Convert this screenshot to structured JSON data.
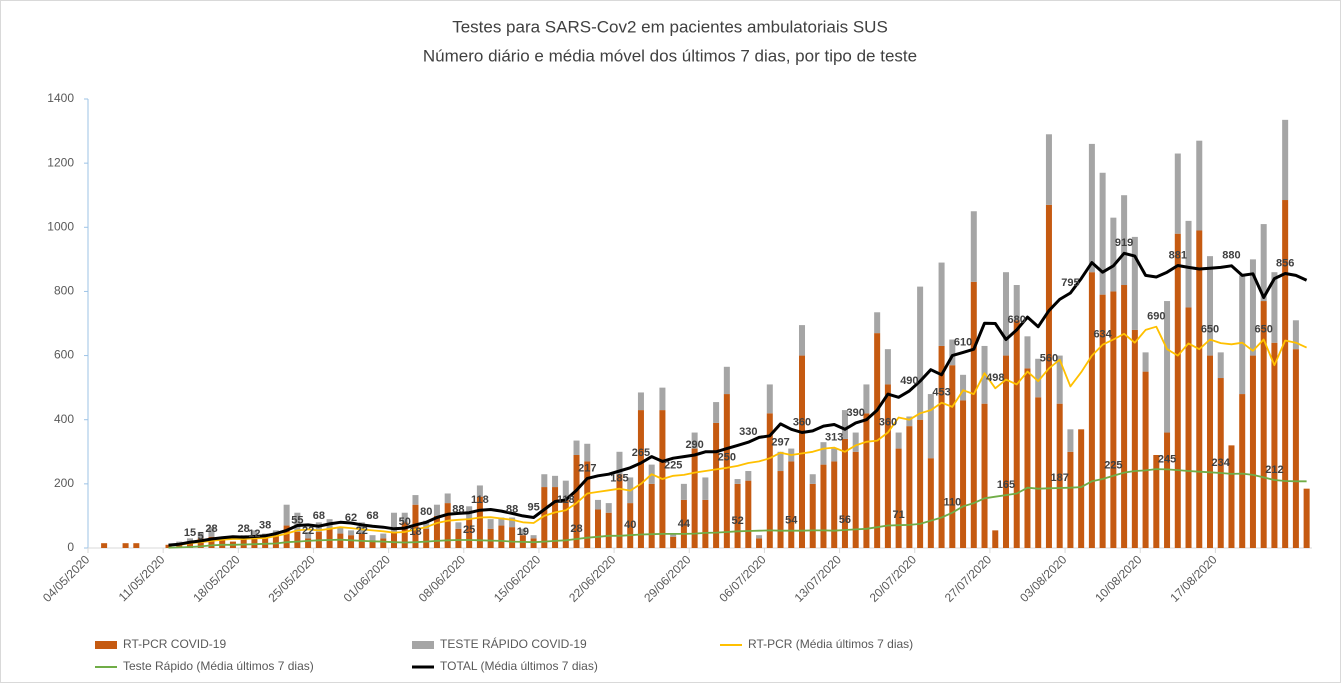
{
  "chart_data": {
    "type": "combo",
    "title": "Testes para SARS-Cov2 em pacientes ambulatoriais SUS",
    "subtitle": "Número diário e média móvel dos últimos 7 dias, por tipo de teste",
    "stacked": true,
    "grid": false,
    "legend": "bottom",
    "ylim": [
      0,
      1400
    ],
    "yticks": [
      0,
      200,
      400,
      600,
      800,
      1000,
      1200,
      1400
    ],
    "categories": [
      "04/05/2020",
      null,
      null,
      null,
      null,
      null,
      null,
      "11/05/2020",
      null,
      null,
      null,
      null,
      null,
      null,
      "18/05/2020",
      null,
      null,
      null,
      null,
      null,
      null,
      "25/05/2020",
      null,
      null,
      null,
      null,
      null,
      null,
      "01/06/2020",
      null,
      null,
      null,
      null,
      null,
      null,
      "08/06/2020",
      null,
      null,
      null,
      null,
      null,
      null,
      "15/06/2020",
      null,
      null,
      null,
      null,
      null,
      null,
      "22/06/2020",
      null,
      null,
      null,
      null,
      null,
      null,
      "29/06/2020",
      null,
      null,
      null,
      null,
      null,
      null,
      "06/07/2020",
      null,
      null,
      null,
      null,
      null,
      null,
      "13/07/2020",
      null,
      null,
      null,
      null,
      null,
      null,
      "20/07/2020",
      null,
      null,
      null,
      null,
      null,
      null,
      "27/07/2020",
      null,
      null,
      null,
      null,
      null,
      null,
      "03/08/2020",
      null,
      null,
      null,
      null,
      null,
      null,
      "10/08/2020",
      null,
      null,
      null,
      null,
      null,
      null,
      "17/08/2020",
      null,
      null,
      null,
      null,
      null,
      null,
      null,
      null
    ],
    "series": [
      {
        "name": "RT-PCR COVID-19",
        "type": "bar",
        "color": "#c55a11",
        "values": [
          0,
          15,
          0,
          15,
          15,
          0,
          0,
          10,
          15,
          20,
          30,
          35,
          30,
          20,
          30,
          40,
          35,
          45,
          70,
          50,
          30,
          50,
          60,
          45,
          40,
          45,
          20,
          30,
          50,
          80,
          135,
          60,
          100,
          140,
          60,
          90,
          160,
          60,
          70,
          65,
          40,
          30,
          190,
          190,
          150,
          290,
          270,
          120,
          110,
          230,
          140,
          430,
          200,
          430,
          35,
          150,
          310,
          150,
          390,
          480,
          200,
          210,
          30,
          420,
          240,
          270,
          600,
          200,
          260,
          270,
          340,
          300,
          420,
          670,
          510,
          310,
          380,
          400,
          280,
          630,
          570,
          460,
          830,
          450,
          55,
          600,
          710,
          560,
          470,
          1070,
          450,
          300,
          370,
          860,
          790,
          800,
          820,
          680,
          550,
          290,
          360,
          980,
          750,
          990,
          600,
          530,
          320,
          480,
          600,
          770,
          640,
          1085,
          620,
          185
        ]
      },
      {
        "name": "TESTE RÁPIDO COVID-19",
        "type": "bar",
        "color": "#a5a5a5",
        "values": [
          0,
          0,
          0,
          0,
          0,
          0,
          0,
          0,
          5,
          10,
          20,
          30,
          5,
          0,
          10,
          15,
          10,
          10,
          65,
          60,
          20,
          30,
          30,
          20,
          15,
          35,
          20,
          15,
          60,
          30,
          30,
          25,
          35,
          30,
          20,
          40,
          35,
          30,
          25,
          30,
          20,
          10,
          40,
          35,
          60,
          45,
          55,
          30,
          30,
          70,
          80,
          55,
          60,
          70,
          10,
          50,
          50,
          70,
          65,
          85,
          15,
          30,
          10,
          90,
          60,
          40,
          95,
          30,
          70,
          40,
          90,
          60,
          90,
          65,
          110,
          50,
          30,
          415,
          200,
          260,
          80,
          80,
          220,
          180,
          0,
          260,
          110,
          100,
          120,
          220,
          150,
          70,
          0,
          400,
          380,
          230,
          280,
          290,
          60,
          0,
          410,
          250,
          270,
          280,
          310,
          80,
          0,
          370,
          300,
          240,
          220,
          250,
          90,
          0
        ]
      },
      {
        "name": "RT-PCR (Média últimos 7 dias)",
        "type": "line",
        "color": "#ffc000",
        "data_labels": true,
        "values": [
          null,
          null,
          null,
          null,
          null,
          null,
          null,
          8,
          10,
          15,
          18,
          22,
          26,
          28,
          28,
          30,
          31,
          37,
          45,
          55,
          58,
          55,
          60,
          65,
          62,
          58,
          55,
          52,
          48,
          50,
          58,
          65,
          78,
          85,
          88,
          90,
          95,
          96,
          92,
          88,
          80,
          78,
          100,
          111,
          118,
          140,
          170,
          175,
          180,
          185,
          179,
          200,
          230,
          215,
          225,
          228,
          235,
          240,
          245,
          250,
          256,
          265,
          270,
          280,
          297,
          290,
          295,
          300,
          310,
          313,
          300,
          320,
          331,
          335,
          360,
          407,
          400,
          420,
          430,
          453,
          440,
          492,
          480,
          545,
          498,
          525,
          510,
          550,
          520,
          560,
          587,
          504,
          548,
          600,
          634,
          650,
          668,
          640,
          680,
          690,
          620,
          600,
          638,
          620,
          650,
          639,
          635,
          640,
          615,
          650,
          570,
          647,
          640,
          625
        ]
      },
      {
        "name": "Teste Rápido (Média últimos 7 dias)",
        "type": "line",
        "color": "#70ad47",
        "data_labels": true,
        "values": [
          null,
          null,
          null,
          null,
          null,
          null,
          null,
          1,
          2,
          3,
          5,
          8,
          10,
          10,
          11,
          12,
          13,
          14,
          18,
          20,
          22,
          24,
          25,
          26,
          24,
          22,
          21,
          20,
          18,
          17,
          18,
          20,
          22,
          24,
          25,
          25,
          24,
          23,
          22,
          20,
          19,
          18,
          20,
          22,
          24,
          28,
          32,
          35,
          38,
          38,
          40,
          42,
          43,
          44,
          44,
          44,
          45,
          47,
          48,
          50,
          52,
          53,
          54,
          55,
          54,
          54,
          54,
          55,
          55,
          54,
          56,
          58,
          60,
          65,
          70,
          71,
          72,
          75,
          85,
          95,
          110,
          130,
          140,
          155,
          160,
          165,
          170,
          188,
          185,
          186,
          187,
          188,
          190,
          208,
          215,
          225,
          235,
          240,
          242,
          246,
          245,
          243,
          240,
          238,
          236,
          234,
          231,
          232,
          228,
          220,
          212,
          209,
          208,
          208
        ]
      },
      {
        "name": "TOTAL (Média últimos 7 dias)",
        "type": "line",
        "color": "#000000",
        "data_labels": true,
        "values": [
          null,
          null,
          null,
          null,
          null,
          null,
          null,
          9,
          12,
          18,
          22,
          28,
          32,
          35,
          34,
          36,
          38,
          45,
          55,
          70,
          72,
          68,
          75,
          80,
          78,
          72,
          68,
          65,
          60,
          62,
          72,
          80,
          95,
          105,
          108,
          110,
          118,
          120,
          115,
          108,
          100,
          95,
          120,
          145,
          150,
          180,
          217,
          225,
          230,
          240,
          250,
          265,
          285,
          270,
          280,
          285,
          290,
          300,
          300,
          310,
          320,
          330,
          345,
          350,
          387,
          370,
          360,
          365,
          380,
          385,
          370,
          390,
          400,
          430,
          480,
          470,
          490,
          520,
          556,
          540,
          600,
          610,
          620,
          701,
          700,
          650,
          680,
          720,
          690,
          740,
          775,
          795,
          840,
          890,
          860,
          880,
          919,
          910,
          850,
          845,
          860,
          881,
          875,
          870,
          872,
          875,
          880,
          850,
          855,
          781,
          840,
          856,
          850,
          835
        ]
      }
    ]
  }
}
